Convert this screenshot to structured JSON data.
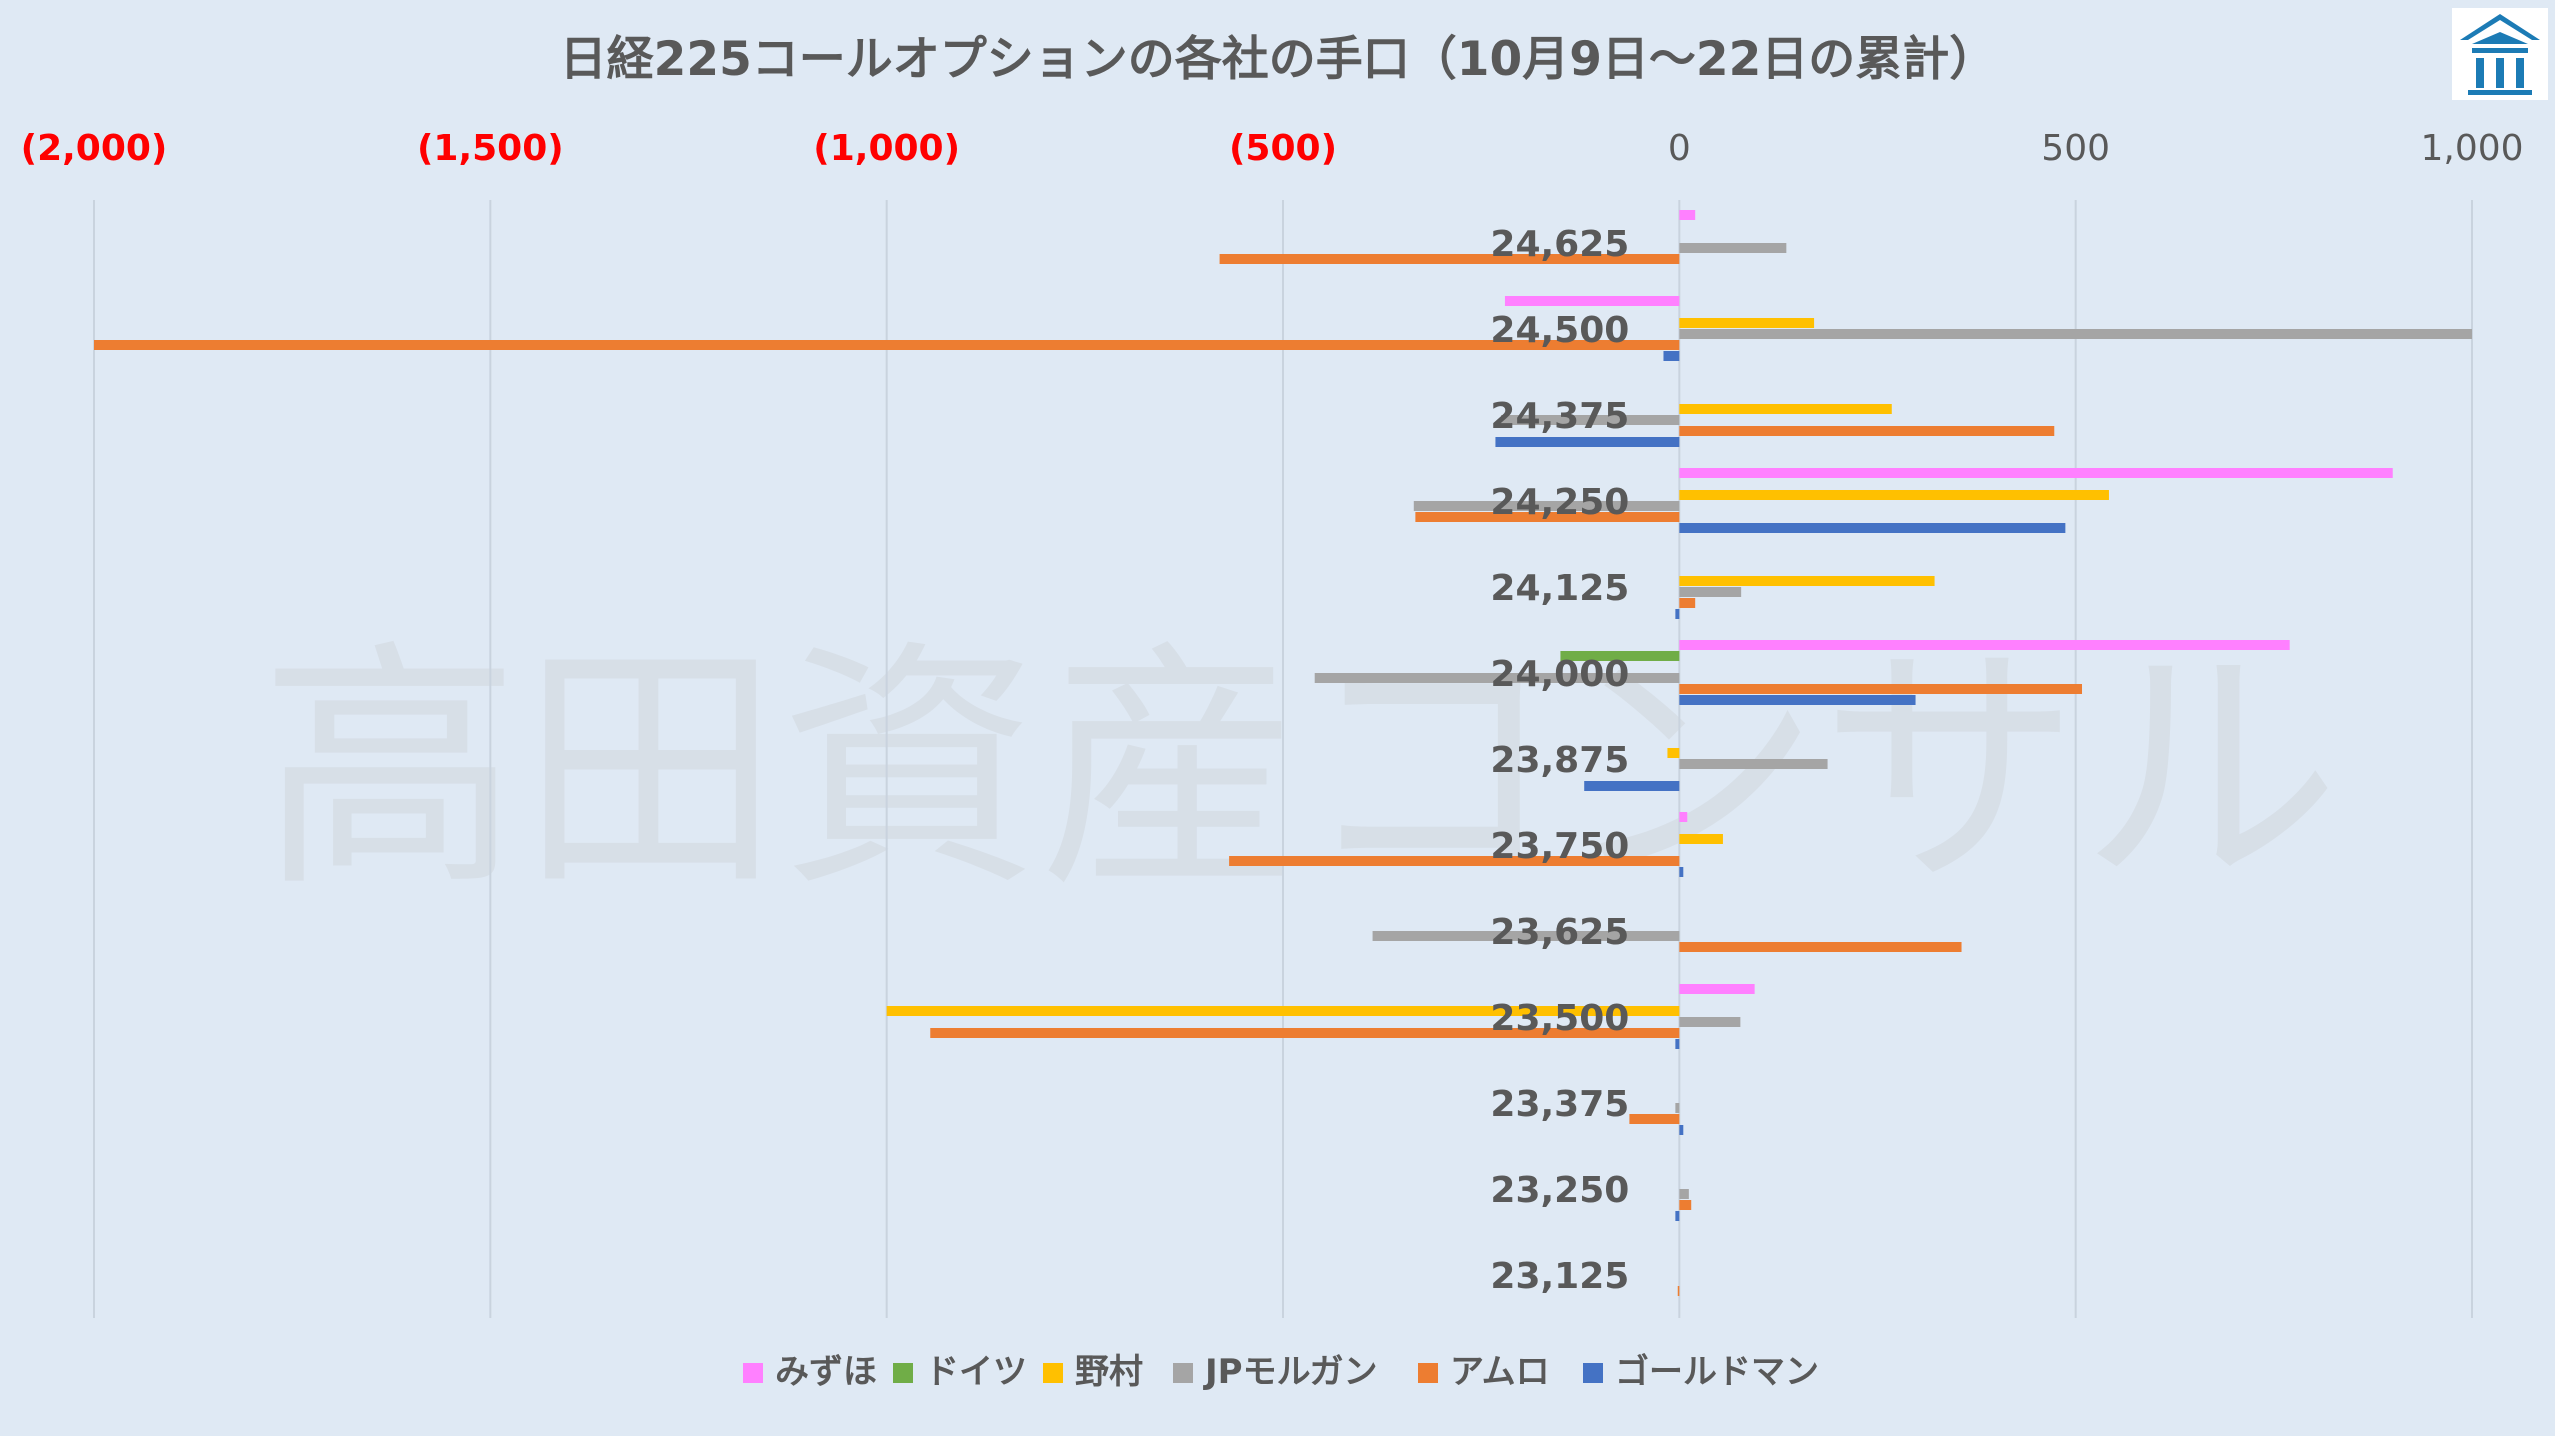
{
  "chart_data": {
    "type": "bar",
    "orientation": "horizontal",
    "title": "日経225コールオプションの各社の手口（10月9日～22日の累計）",
    "watermark": "高田資産コンサル",
    "categories": [
      "24,625",
      "24,500",
      "24,375",
      "24,250",
      "24,125",
      "24,000",
      "23,875",
      "23,750",
      "23,625",
      "23,500",
      "23,375",
      "23,250",
      "23,125"
    ],
    "xlim": [
      -2000,
      1000
    ],
    "xticks": [
      -2000,
      -1500,
      -1000,
      -500,
      0,
      500,
      1000
    ],
    "xtick_labels": [
      "(2,000)",
      "(1,500)",
      "(1,000)",
      "(500)",
      "0",
      "500",
      "1,000"
    ],
    "negative_tick_color": "#ff0000",
    "grid": true,
    "legend_position": "bottom",
    "series": [
      {
        "name": "みずほ",
        "color": "#ff80ff",
        "values": [
          20,
          -220,
          0,
          900,
          0,
          770,
          0,
          10,
          0,
          95,
          0,
          0,
          0
        ]
      },
      {
        "name": "ドイツ",
        "color": "#70ad47",
        "values": [
          0,
          0,
          0,
          0,
          0,
          -150,
          0,
          0,
          0,
          0,
          0,
          0,
          0
        ]
      },
      {
        "name": "野村",
        "color": "#ffc000",
        "values": [
          0,
          170,
          268,
          542,
          322,
          0,
          -15,
          55,
          0,
          -1000,
          0,
          0,
          0
        ]
      },
      {
        "name": "JPモルガン",
        "color": "#a5a5a5",
        "values": [
          135,
          1000,
          -225,
          -335,
          78,
          -460,
          187,
          0,
          -387,
          77,
          -5,
          12,
          0
        ]
      },
      {
        "name": "アムロ",
        "color": "#ed7d31",
        "values": [
          -580,
          -2000,
          473,
          -333,
          20,
          508,
          0,
          -568,
          356,
          -945,
          -63,
          15,
          -2
        ]
      },
      {
        "name": "ゴールドマン",
        "color": "#4472c4",
        "values": [
          0,
          -20,
          -232,
          487,
          -5,
          298,
          -120,
          5,
          0,
          -5,
          5,
          -5,
          0
        ]
      }
    ]
  }
}
